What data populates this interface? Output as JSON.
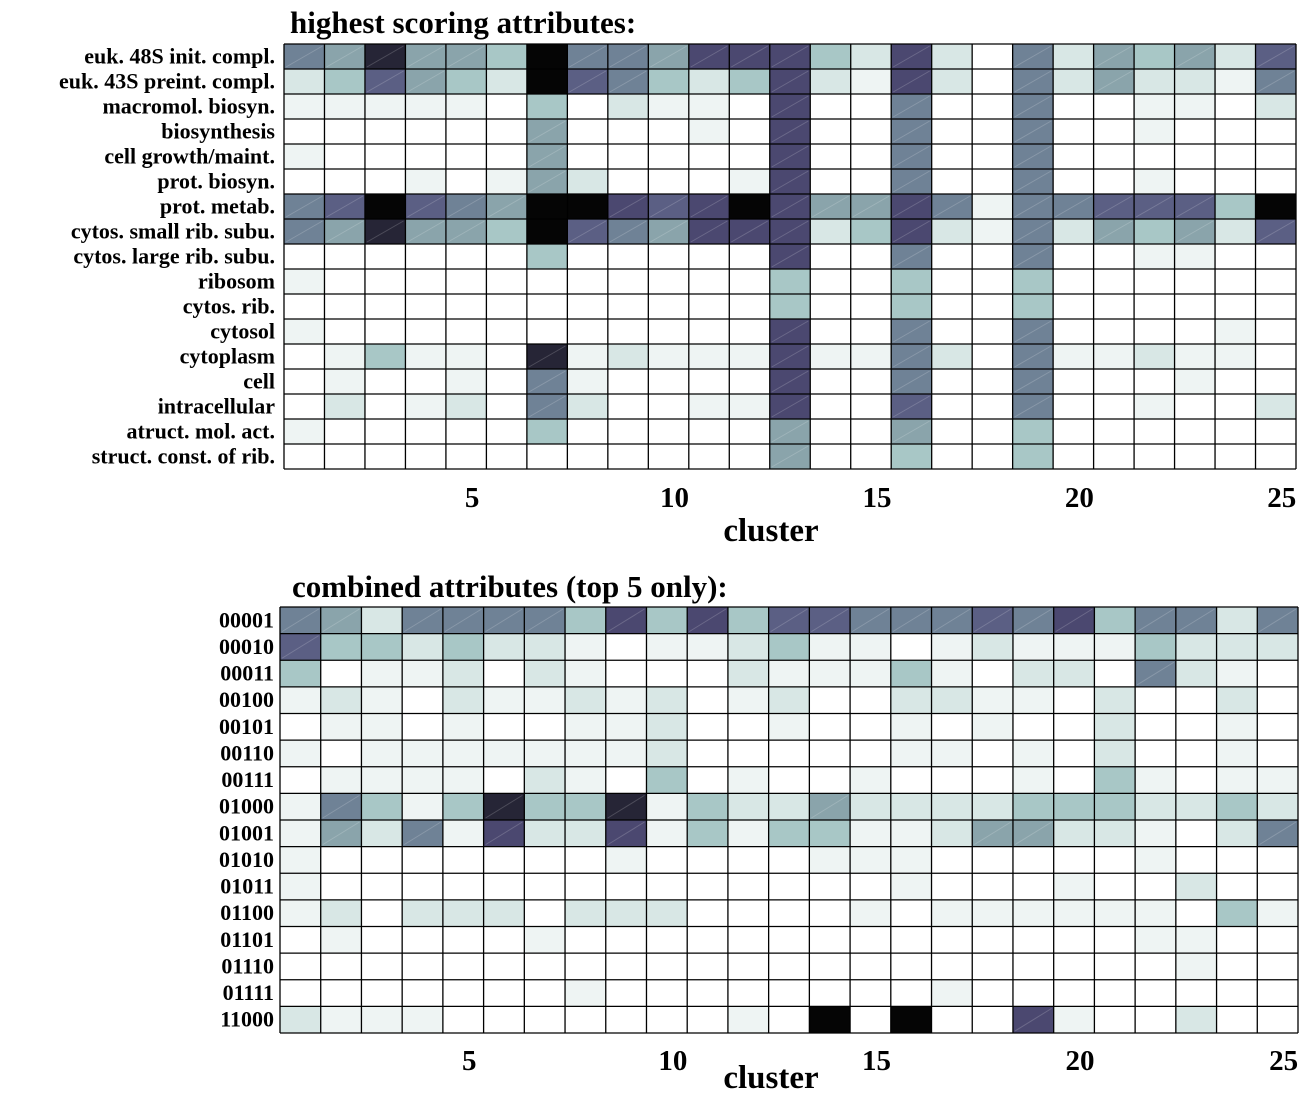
{
  "chart_data": [
    {
      "type": "heatmap",
      "title": "highest scoring attributes:",
      "xlabel": "cluster",
      "x": [
        1,
        2,
        3,
        4,
        5,
        6,
        7,
        8,
        9,
        10,
        11,
        12,
        13,
        14,
        15,
        16,
        17,
        18,
        19,
        20,
        21,
        22,
        23,
        24,
        25
      ],
      "xticks": [
        "5",
        "10",
        "15",
        "20",
        "25"
      ],
      "colorscale": "white to dark slate blue to black (0 = white, 9 = black)",
      "grid": true,
      "rows": [
        "euk. 48S init. compl.",
        "euk. 43S preint. compl.",
        "macromol. biosyn.",
        "biosynthesis",
        "cell growth/maint.",
        "prot. biosyn.",
        "prot. metab.",
        "cytos. small rib. subu.",
        "cytos. large rib. subu.",
        "ribosom",
        "cytos. rib.",
        "cytosol",
        "cytoplasm",
        "cell",
        "intracellular",
        "atruct. mol. act.",
        "struct. const. of rib."
      ],
      "values": [
        [
          5,
          4,
          8,
          4,
          4,
          3,
          9,
          5,
          5,
          4,
          7,
          7,
          7,
          3,
          2,
          7,
          2,
          0,
          5,
          2,
          4,
          3,
          4,
          2,
          6
        ],
        [
          2,
          3,
          6,
          4,
          3,
          2,
          9,
          6,
          5,
          3,
          2,
          3,
          7,
          2,
          1,
          7,
          2,
          0,
          5,
          2,
          4,
          2,
          2,
          1,
          5
        ],
        [
          1,
          1,
          1,
          1,
          1,
          0,
          3,
          0,
          2,
          1,
          1,
          0,
          7,
          0,
          0,
          5,
          0,
          0,
          5,
          0,
          0,
          1,
          1,
          0,
          2
        ],
        [
          0,
          0,
          0,
          0,
          0,
          0,
          4,
          0,
          0,
          0,
          1,
          0,
          7,
          0,
          0,
          5,
          0,
          0,
          5,
          0,
          0,
          1,
          0,
          0,
          0
        ],
        [
          1,
          0,
          0,
          0,
          0,
          0,
          4,
          0,
          0,
          0,
          0,
          0,
          7,
          0,
          0,
          5,
          0,
          0,
          5,
          0,
          0,
          0,
          0,
          0,
          0
        ],
        [
          0,
          0,
          0,
          1,
          0,
          1,
          4,
          2,
          0,
          0,
          0,
          1,
          7,
          0,
          0,
          5,
          0,
          0,
          5,
          0,
          0,
          1,
          0,
          0,
          0
        ],
        [
          5,
          6,
          9,
          6,
          5,
          4,
          9,
          9,
          7,
          6,
          7,
          9,
          7,
          4,
          4,
          7,
          5,
          1,
          5,
          5,
          6,
          6,
          6,
          3,
          9
        ],
        [
          5,
          4,
          8,
          4,
          4,
          3,
          9,
          6,
          5,
          4,
          7,
          7,
          7,
          2,
          3,
          7,
          2,
          1,
          5,
          2,
          4,
          3,
          4,
          2,
          6
        ],
        [
          0,
          0,
          0,
          0,
          0,
          0,
          3,
          0,
          0,
          0,
          0,
          0,
          7,
          0,
          0,
          5,
          0,
          0,
          5,
          0,
          0,
          1,
          1,
          0,
          0
        ],
        [
          1,
          0,
          0,
          0,
          0,
          0,
          0,
          0,
          0,
          0,
          0,
          0,
          3,
          0,
          0,
          3,
          0,
          0,
          3,
          0,
          0,
          0,
          0,
          0,
          0
        ],
        [
          0,
          0,
          0,
          0,
          0,
          0,
          0,
          0,
          0,
          0,
          0,
          0,
          3,
          0,
          0,
          3,
          0,
          0,
          3,
          0,
          0,
          0,
          0,
          0,
          0
        ],
        [
          1,
          0,
          0,
          0,
          0,
          0,
          0,
          0,
          0,
          0,
          0,
          0,
          7,
          0,
          0,
          5,
          0,
          0,
          5,
          0,
          0,
          0,
          0,
          1,
          0
        ],
        [
          0,
          1,
          3,
          1,
          1,
          0,
          8,
          1,
          2,
          1,
          1,
          1,
          7,
          1,
          1,
          5,
          2,
          0,
          5,
          1,
          1,
          2,
          1,
          1,
          0
        ],
        [
          0,
          1,
          0,
          0,
          1,
          0,
          5,
          1,
          0,
          0,
          0,
          0,
          7,
          0,
          0,
          5,
          0,
          0,
          5,
          0,
          0,
          0,
          1,
          0,
          0
        ],
        [
          0,
          2,
          0,
          1,
          2,
          0,
          5,
          2,
          0,
          0,
          1,
          1,
          7,
          0,
          0,
          6,
          0,
          0,
          5,
          0,
          0,
          1,
          0,
          0,
          2
        ],
        [
          1,
          0,
          0,
          0,
          0,
          0,
          3,
          0,
          0,
          0,
          0,
          0,
          4,
          0,
          0,
          4,
          0,
          0,
          3,
          0,
          0,
          0,
          0,
          0,
          0
        ],
        [
          0,
          0,
          0,
          0,
          0,
          0,
          0,
          0,
          0,
          0,
          0,
          0,
          4,
          0,
          0,
          3,
          0,
          0,
          3,
          0,
          0,
          0,
          0,
          0,
          0
        ]
      ]
    },
    {
      "type": "heatmap",
      "title": "combined attributes (top 5 only):",
      "xlabel": "cluster",
      "x": [
        1,
        2,
        3,
        4,
        5,
        6,
        7,
        8,
        9,
        10,
        11,
        12,
        13,
        14,
        15,
        16,
        17,
        18,
        19,
        20,
        21,
        22,
        23,
        24,
        25
      ],
      "xticks": [
        "5",
        "10",
        "15",
        "20",
        "25"
      ],
      "colorscale": "white to dark slate blue to black (0 = white, 9 = black)",
      "grid": true,
      "rows": [
        "00001",
        "00010",
        "00011",
        "00100",
        "00101",
        "00110",
        "00111",
        "01000",
        "01001",
        "01010",
        "01011",
        "01100",
        "01101",
        "01110",
        "01111",
        "11000"
      ],
      "values": [
        [
          5,
          4,
          2,
          5,
          5,
          5,
          5,
          3,
          7,
          3,
          7,
          3,
          6,
          6,
          5,
          5,
          5,
          6,
          5,
          7,
          3,
          5,
          5,
          2,
          5
        ],
        [
          6,
          3,
          3,
          2,
          3,
          2,
          2,
          1,
          0,
          1,
          1,
          2,
          3,
          1,
          1,
          0,
          1,
          2,
          1,
          1,
          1,
          3,
          2,
          2,
          2
        ],
        [
          3,
          0,
          1,
          1,
          2,
          0,
          2,
          1,
          0,
          0,
          0,
          2,
          1,
          1,
          1,
          3,
          1,
          0,
          2,
          2,
          0,
          5,
          2,
          1,
          0
        ],
        [
          1,
          2,
          1,
          0,
          2,
          1,
          1,
          2,
          1,
          2,
          0,
          1,
          2,
          0,
          0,
          2,
          2,
          1,
          1,
          0,
          2,
          0,
          0,
          2,
          0
        ],
        [
          0,
          1,
          1,
          0,
          1,
          0,
          0,
          1,
          1,
          2,
          0,
          0,
          1,
          0,
          0,
          1,
          0,
          1,
          0,
          0,
          2,
          0,
          0,
          1,
          0
        ],
        [
          1,
          0,
          1,
          1,
          1,
          1,
          1,
          1,
          1,
          2,
          0,
          0,
          0,
          0,
          0,
          1,
          1,
          0,
          1,
          0,
          2,
          0,
          0,
          1,
          0
        ],
        [
          0,
          1,
          1,
          1,
          1,
          0,
          2,
          1,
          0,
          3,
          0,
          1,
          0,
          0,
          1,
          0,
          0,
          0,
          1,
          0,
          3,
          1,
          0,
          1,
          1
        ],
        [
          1,
          5,
          3,
          1,
          3,
          8,
          3,
          3,
          8,
          1,
          3,
          2,
          2,
          4,
          2,
          2,
          2,
          2,
          3,
          3,
          3,
          2,
          2,
          3,
          2
        ],
        [
          1,
          4,
          2,
          5,
          1,
          7,
          2,
          2,
          7,
          1,
          3,
          1,
          3,
          3,
          1,
          1,
          2,
          4,
          4,
          2,
          2,
          1,
          0,
          2,
          5
        ],
        [
          1,
          0,
          0,
          0,
          0,
          0,
          0,
          0,
          1,
          0,
          0,
          0,
          0,
          1,
          1,
          1,
          0,
          0,
          0,
          0,
          0,
          1,
          0,
          0,
          0
        ],
        [
          1,
          0,
          0,
          0,
          0,
          0,
          0,
          0,
          0,
          0,
          0,
          0,
          0,
          0,
          0,
          1,
          0,
          0,
          0,
          1,
          0,
          0,
          2,
          0,
          0
        ],
        [
          1,
          2,
          0,
          2,
          2,
          2,
          0,
          2,
          2,
          2,
          0,
          0,
          0,
          0,
          1,
          0,
          1,
          1,
          1,
          1,
          1,
          1,
          0,
          3,
          1
        ],
        [
          0,
          1,
          0,
          0,
          0,
          0,
          1,
          0,
          0,
          0,
          0,
          0,
          0,
          0,
          0,
          0,
          0,
          0,
          0,
          0,
          0,
          1,
          1,
          0,
          0
        ],
        [
          0,
          0,
          0,
          0,
          0,
          0,
          0,
          0,
          0,
          0,
          0,
          0,
          0,
          0,
          0,
          0,
          0,
          0,
          0,
          0,
          0,
          0,
          1,
          0,
          0
        ],
        [
          0,
          0,
          0,
          0,
          0,
          0,
          0,
          1,
          0,
          0,
          0,
          0,
          0,
          0,
          0,
          0,
          1,
          0,
          0,
          0,
          0,
          0,
          0,
          0,
          0
        ],
        [
          2,
          1,
          1,
          1,
          0,
          0,
          0,
          0,
          0,
          0,
          0,
          1,
          0,
          9,
          0,
          9,
          0,
          0,
          7,
          1,
          0,
          0,
          2,
          0,
          0
        ]
      ]
    }
  ]
}
